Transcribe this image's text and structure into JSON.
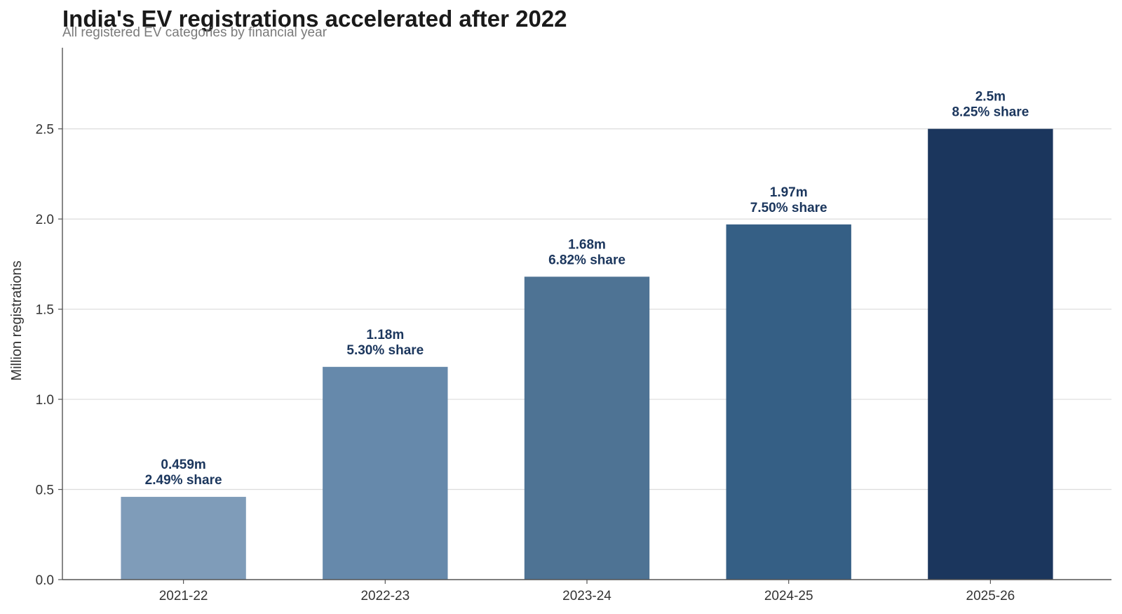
{
  "chart_data": {
    "type": "bar",
    "title": "India's EV registrations accelerated after 2022",
    "subtitle": "All registered EV categories by financial year",
    "xlabel": "",
    "ylabel": "Million registrations",
    "categories": [
      "2021-22",
      "2022-23",
      "2023-24",
      "2024-25",
      "2025-26"
    ],
    "values": [
      0.459,
      1.18,
      1.68,
      1.97,
      2.5
    ],
    "value_labels": [
      "0.459m",
      "1.18m",
      "1.68m",
      "1.97m",
      "2.5m"
    ],
    "share_labels": [
      "2.49% share",
      "5.30% share",
      "6.82% share",
      "7.50% share",
      "8.25% share"
    ],
    "bar_colors": [
      "#7f9cb9",
      "#6689ab",
      "#4e7394",
      "#355f85",
      "#1b365d"
    ],
    "label_color": "#1b365d",
    "ylim": [
      0,
      2.95
    ],
    "yticks": [
      0.0,
      0.5,
      1.0,
      1.5,
      2.0,
      2.5
    ],
    "ytick_labels": [
      "0.0",
      "0.5",
      "1.0",
      "1.5",
      "2.0",
      "2.5"
    ],
    "grid": "horizontal",
    "legend": "none"
  }
}
